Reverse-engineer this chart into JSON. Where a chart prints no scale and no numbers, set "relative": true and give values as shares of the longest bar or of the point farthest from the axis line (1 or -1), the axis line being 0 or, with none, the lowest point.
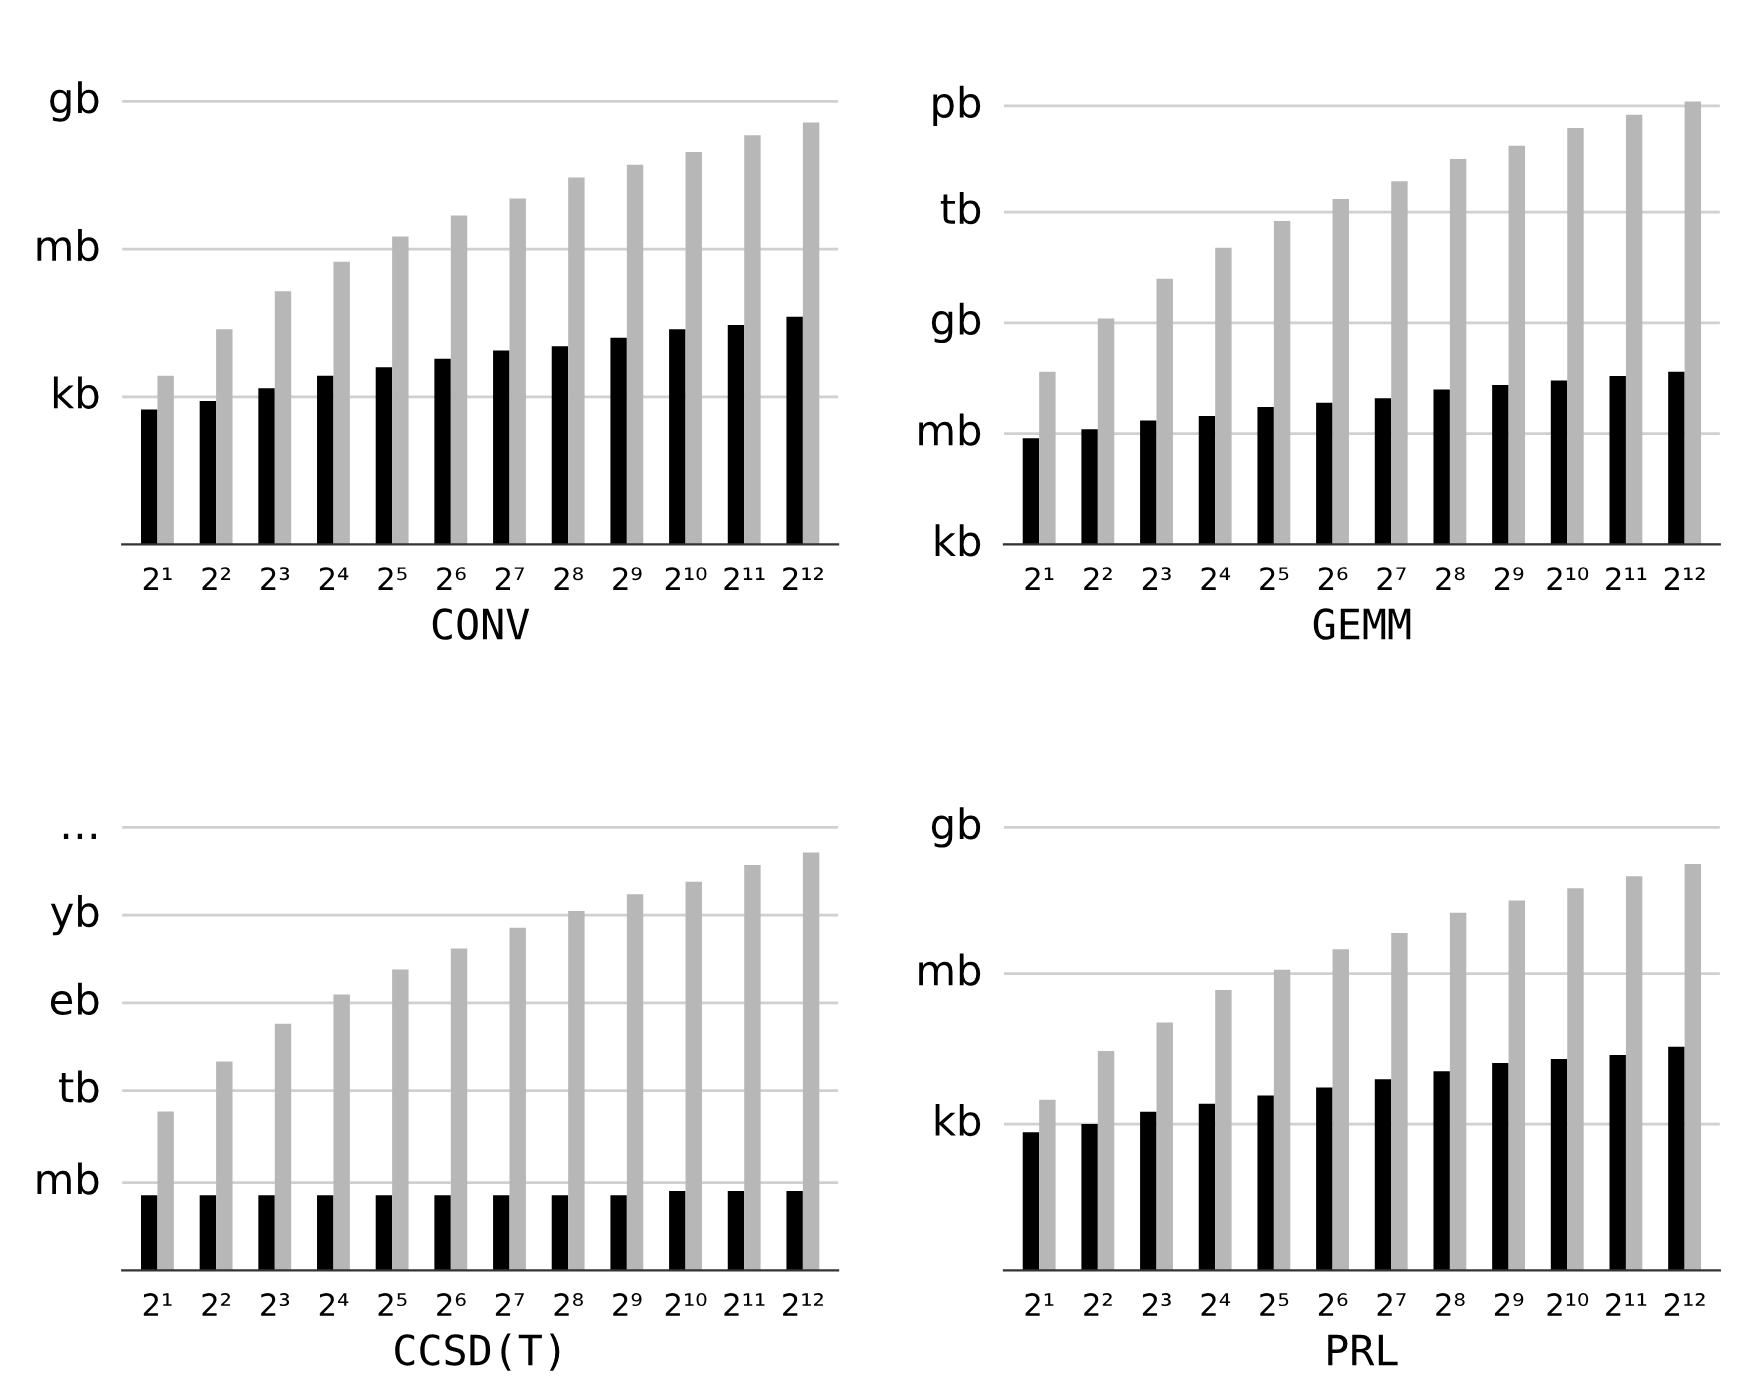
{
  "chart_data": [
    {
      "type": "bar",
      "xlabel": "CONV",
      "categories": [
        "2¹",
        "2²",
        "2³",
        "2⁴",
        "2⁵",
        "2⁶",
        "2⁷",
        "2⁸",
        "2⁹",
        "2¹⁰",
        "2¹¹",
        "2¹²"
      ],
      "relative": true,
      "ref_lines": [
        {
          "axis": "y",
          "value": 0.35,
          "label": "kb",
          "color": "#d0d0d0"
        },
        {
          "axis": "y",
          "value": 0.7,
          "label": "mb",
          "color": "#d0d0d0"
        },
        {
          "axis": "y",
          "value": 1.05,
          "label": "gb",
          "color": "#d0d0d0"
        }
      ],
      "series": [
        {
          "color": "#000000",
          "values": [
            0.32,
            0.34,
            0.37,
            0.4,
            0.42,
            0.44,
            0.46,
            0.47,
            0.49,
            0.51,
            0.52,
            0.54
          ]
        },
        {
          "color": "#b7b7b7",
          "values": [
            0.4,
            0.51,
            0.6,
            0.67,
            0.73,
            0.78,
            0.82,
            0.87,
            0.9,
            0.93,
            0.97,
            1
          ]
        }
      ]
    },
    {
      "type": "bar",
      "xlabel": "GEMM",
      "categories": [
        "2¹",
        "2²",
        "2³",
        "2⁴",
        "2⁵",
        "2⁶",
        "2⁷",
        "2⁸",
        "2⁹",
        "2¹⁰",
        "2¹¹",
        "2¹²"
      ],
      "relative": true,
      "ref_lines": [
        {
          "axis": "y",
          "value": 0,
          "label": "kb",
          "color": "#d0d0d0"
        },
        {
          "axis": "y",
          "value": 0.25,
          "label": "mb",
          "color": "#d0d0d0"
        },
        {
          "axis": "y",
          "value": 0.5,
          "label": "gb",
          "color": "#d0d0d0"
        },
        {
          "axis": "y",
          "value": 0.75,
          "label": "tb",
          "color": "#d0d0d0"
        },
        {
          "axis": "y",
          "value": 0.99,
          "label": "pb",
          "color": "#d0d0d0"
        }
      ],
      "series": [
        {
          "color": "#000000",
          "values": [
            0.24,
            0.26,
            0.28,
            0.29,
            0.31,
            0.32,
            0.33,
            0.35,
            0.36,
            0.37,
            0.38,
            0.39
          ]
        },
        {
          "color": "#b7b7b7",
          "values": [
            0.39,
            0.51,
            0.6,
            0.67,
            0.73,
            0.78,
            0.82,
            0.87,
            0.9,
            0.94,
            0.97,
            1
          ]
        }
      ]
    },
    {
      "type": "bar",
      "xlabel": "CCSD(T)",
      "categories": [
        "2¹",
        "2²",
        "2³",
        "2⁴",
        "2⁵",
        "2⁶",
        "2⁷",
        "2⁸",
        "2⁹",
        "2¹⁰",
        "2¹¹",
        "2¹²"
      ],
      "relative": true,
      "ref_lines": [
        {
          "axis": "y",
          "value": 0.21,
          "label": "mb",
          "color": "#d0d0d0"
        },
        {
          "axis": "y",
          "value": 0.43,
          "label": "tb",
          "color": "#d0d0d0"
        },
        {
          "axis": "y",
          "value": 0.64,
          "label": "eb",
          "color": "#d0d0d0"
        },
        {
          "axis": "y",
          "value": 0.85,
          "label": "yb",
          "color": "#d0d0d0"
        },
        {
          "axis": "y",
          "value": 1.06,
          "label": "…",
          "color": "#d0d0d0"
        }
      ],
      "series": [
        {
          "color": "#000000",
          "values": [
            0.18,
            0.18,
            0.18,
            0.18,
            0.18,
            0.18,
            0.18,
            0.18,
            0.18,
            0.19,
            0.19,
            0.19
          ]
        },
        {
          "color": "#b7b7b7",
          "values": [
            0.38,
            0.5,
            0.59,
            0.66,
            0.72,
            0.77,
            0.82,
            0.86,
            0.9,
            0.93,
            0.97,
            1
          ]
        }
      ]
    },
    {
      "type": "bar",
      "xlabel": "PRL",
      "categories": [
        "2¹",
        "2²",
        "2³",
        "2⁴",
        "2⁵",
        "2⁶",
        "2⁷",
        "2⁸",
        "2⁹",
        "2¹⁰",
        "2¹¹",
        "2¹²"
      ],
      "relative": true,
      "ref_lines": [
        {
          "axis": "y",
          "value": 0.36,
          "label": "kb",
          "color": "#d0d0d0"
        },
        {
          "axis": "y",
          "value": 0.73,
          "label": "mb",
          "color": "#d0d0d0"
        },
        {
          "axis": "y",
          "value": 1.09,
          "label": "gb",
          "color": "#d0d0d0"
        }
      ],
      "series": [
        {
          "color": "#000000",
          "values": [
            0.34,
            0.36,
            0.39,
            0.41,
            0.43,
            0.45,
            0.47,
            0.49,
            0.51,
            0.52,
            0.53,
            0.55
          ]
        },
        {
          "color": "#b7b7b7",
          "values": [
            0.42,
            0.54,
            0.61,
            0.69,
            0.74,
            0.79,
            0.83,
            0.88,
            0.91,
            0.94,
            0.97,
            1
          ]
        }
      ]
    }
  ]
}
